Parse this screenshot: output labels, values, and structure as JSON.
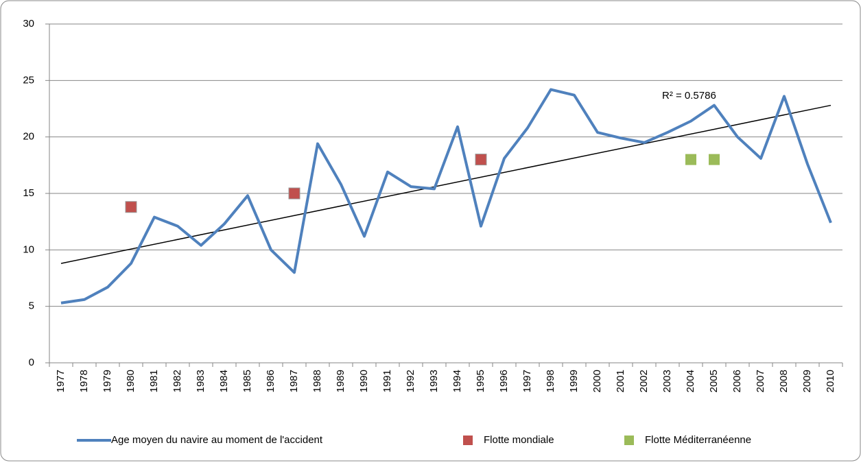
{
  "chart_data": {
    "type": "line",
    "categories": [
      "1977",
      "1978",
      "1979",
      "1980",
      "1981",
      "1982",
      "1983",
      "1984",
      "1985",
      "1986",
      "1987",
      "1988",
      "1989",
      "1990",
      "1991",
      "1992",
      "1993",
      "1994",
      "1995",
      "1996",
      "1997",
      "1998",
      "1999",
      "2000",
      "2001",
      "2002",
      "2003",
      "2004",
      "2005",
      "2006",
      "2007",
      "2008",
      "2009",
      "2010"
    ],
    "series": [
      {
        "name": "Age moyen du navire au moment de l'accident",
        "color": "#4f81bd",
        "mark": "line",
        "values": [
          5.3,
          5.6,
          6.7,
          8.8,
          12.9,
          12.1,
          10.4,
          12.3,
          14.8,
          10.0,
          8.0,
          19.4,
          15.8,
          11.2,
          16.9,
          15.6,
          15.4,
          20.9,
          12.1,
          18.1,
          20.8,
          24.2,
          23.7,
          20.4,
          19.9,
          19.5,
          20.4,
          21.4,
          22.8,
          20.0,
          18.1,
          23.6,
          17.6,
          12.4
        ]
      },
      {
        "name": "Flotte mondiale",
        "color": "#c0504d",
        "mark": "square",
        "values": [
          null,
          null,
          null,
          13.8,
          null,
          null,
          null,
          null,
          null,
          null,
          15.0,
          null,
          null,
          null,
          null,
          null,
          null,
          null,
          18.0,
          null,
          null,
          null,
          null,
          null,
          null,
          null,
          null,
          null,
          null,
          null,
          null,
          null,
          null,
          null
        ]
      },
      {
        "name": "Flotte Méditerranéenne",
        "color": "#9bbb59",
        "mark": "square",
        "values": [
          null,
          null,
          null,
          null,
          null,
          null,
          null,
          null,
          null,
          null,
          null,
          null,
          null,
          null,
          null,
          null,
          null,
          null,
          null,
          null,
          null,
          null,
          null,
          null,
          null,
          null,
          null,
          18.0,
          18.0,
          null,
          null,
          null,
          null,
          null
        ]
      }
    ],
    "trendline": {
      "values": [
        8.8,
        22.8
      ],
      "label": "R² = 0.5786",
      "color": "#000000"
    },
    "ylim": [
      0,
      30
    ],
    "yticks": [
      0,
      5,
      10,
      15,
      20,
      25,
      30
    ],
    "grid": true
  }
}
